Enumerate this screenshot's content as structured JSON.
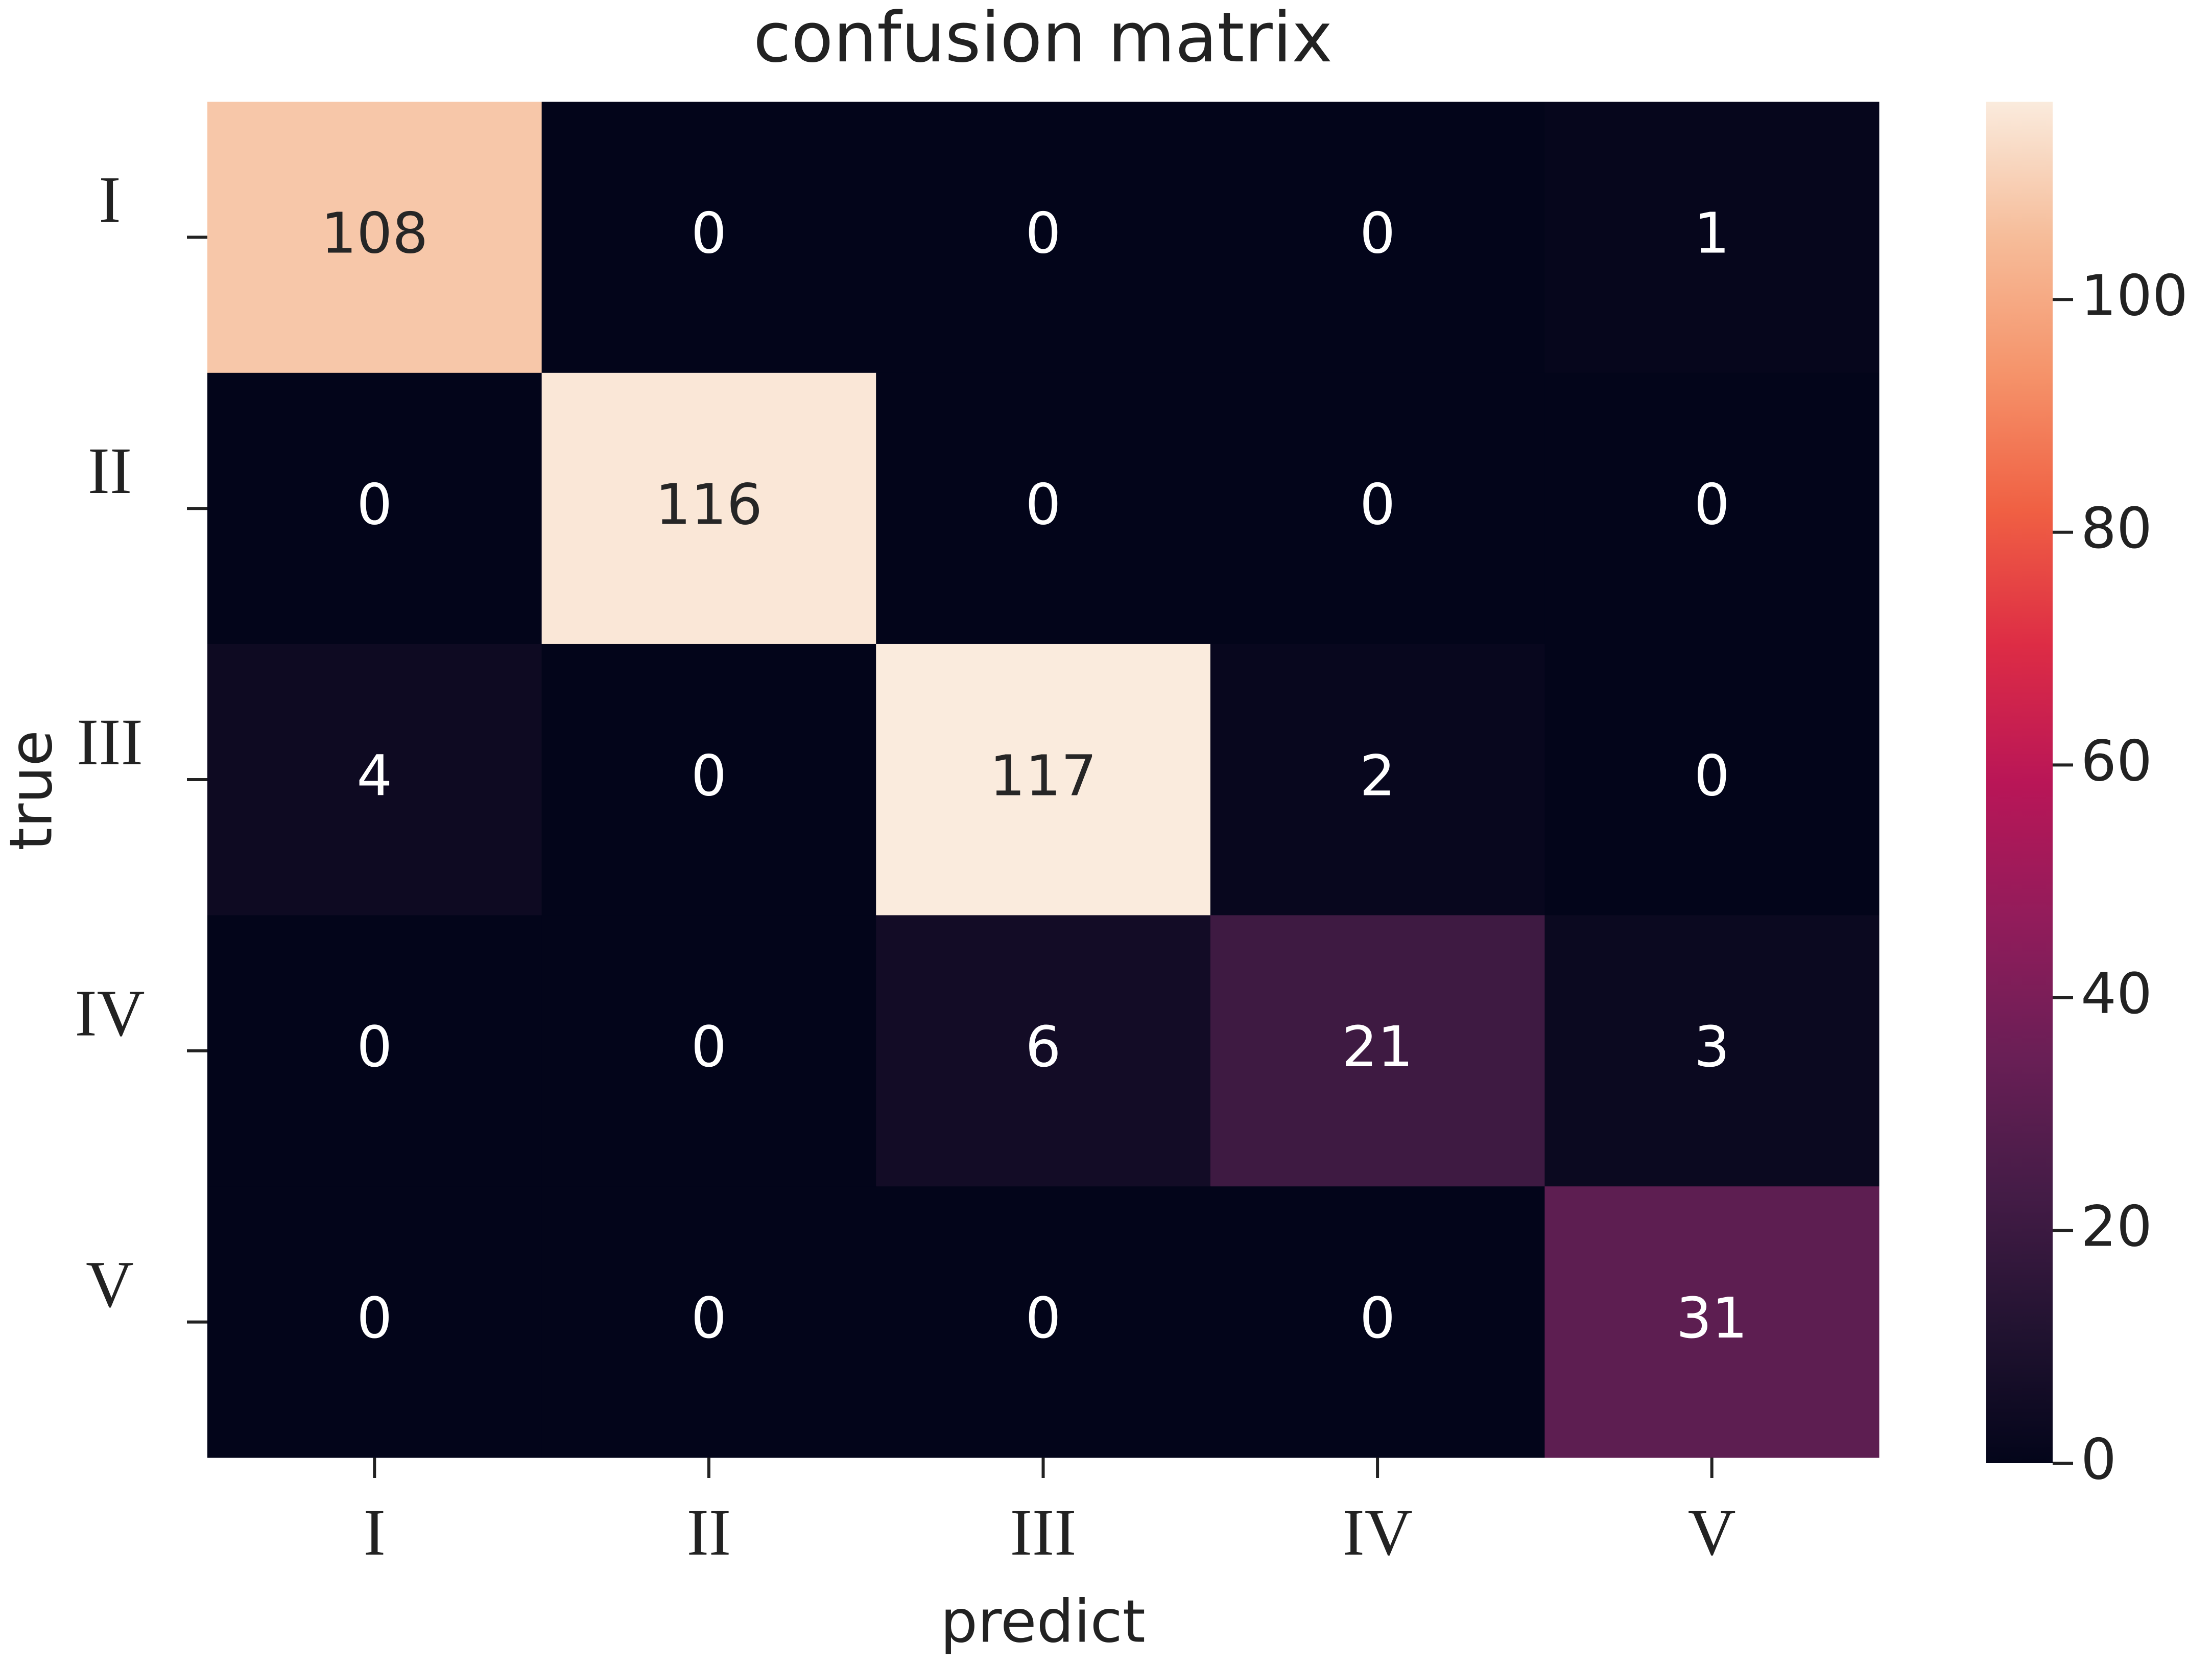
{
  "chart_data": {
    "type": "heatmap",
    "title": "confusion matrix",
    "x_label": "predict",
    "y_label": "true",
    "x_categories": [
      "I",
      "II",
      "III",
      "IV",
      "V"
    ],
    "y_categories": [
      "I",
      "II",
      "III",
      "IV",
      "V"
    ],
    "values": [
      [
        108,
        0,
        0,
        0,
        1
      ],
      [
        0,
        116,
        0,
        0,
        0
      ],
      [
        4,
        0,
        117,
        2,
        0
      ],
      [
        0,
        0,
        6,
        21,
        3
      ],
      [
        0,
        0,
        0,
        0,
        31
      ]
    ],
    "clim": [
      0,
      117
    ],
    "cticks": [
      0,
      20,
      40,
      60,
      80,
      100
    ],
    "colormap": [
      "#03051a",
      "#221331",
      "#451c47",
      "#6a1f56",
      "#921c5b",
      "#b91657",
      "#dd2c45",
      "#f06043",
      "#f5936a",
      "#f6bc99",
      "#faebdd"
    ]
  }
}
